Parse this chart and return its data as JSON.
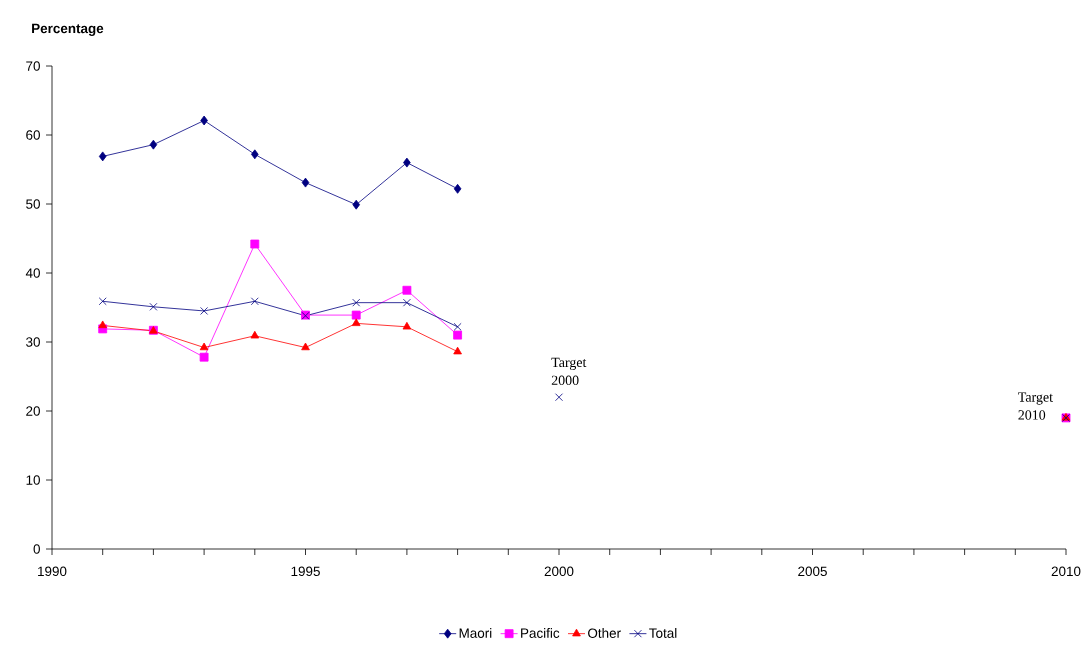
{
  "chart_data": {
    "type": "line",
    "ylabel": "Percentage",
    "xlim": [
      1990,
      2010
    ],
    "ylim": [
      0,
      70
    ],
    "xticks": [
      1990,
      {
        "value": 1991,
        "label": null
      },
      {
        "value": 1992,
        "label": null
      },
      {
        "value": 1993,
        "label": null
      },
      {
        "value": 1994,
        "label": null
      },
      1995,
      {
        "value": 1996,
        "label": null
      },
      {
        "value": 1997,
        "label": null
      },
      {
        "value": 1998,
        "label": null
      },
      {
        "value": 1999,
        "label": null
      },
      2000,
      {
        "value": 2001,
        "label": null
      },
      {
        "value": 2002,
        "label": null
      },
      {
        "value": 2003,
        "label": null
      },
      {
        "value": 2004,
        "label": null
      },
      2005,
      {
        "value": 2006,
        "label": null
      },
      {
        "value": 2007,
        "label": null
      },
      {
        "value": 2008,
        "label": null
      },
      {
        "value": 2009,
        "label": null
      },
      2010
    ],
    "yticks": [
      0,
      10,
      20,
      30,
      40,
      50,
      60,
      70
    ],
    "grid": false,
    "legend": "bottom",
    "series": [
      {
        "name": "Maori",
        "color": "#000080",
        "marker": "diamond",
        "x": [
          1991,
          1992,
          1993,
          1994,
          1995,
          1996,
          1997,
          1998
        ],
        "values": [
          56.9,
          58.6,
          62.1,
          57.2,
          53.1,
          49.9,
          56.0,
          52.2
        ]
      },
      {
        "name": "Pacific",
        "color": "#ff00ff",
        "marker": "square",
        "x": [
          1991,
          1992,
          1993,
          1994,
          1995,
          1996,
          1997,
          1998,
          1999,
          2010
        ],
        "values": [
          31.9,
          31.7,
          27.8,
          44.2,
          33.9,
          33.9,
          37.5,
          31.0,
          null,
          19
        ]
      },
      {
        "name": "Other",
        "color": "#ff0000",
        "marker": "triangle",
        "x": [
          1991,
          1992,
          1993,
          1994,
          1995,
          1996,
          1997,
          1998,
          1999,
          2010
        ],
        "values": [
          32.4,
          31.6,
          29.2,
          30.9,
          29.2,
          32.7,
          32.2,
          28.6,
          null,
          19
        ]
      },
      {
        "name": "Total",
        "color": "#000080",
        "marker": "cross",
        "x": [
          1991,
          1992,
          1993,
          1994,
          1995,
          1996,
          1997,
          1998,
          1999,
          2000,
          2001,
          2010
        ],
        "values": [
          35.9,
          35.1,
          34.5,
          35.9,
          33.8,
          35.7,
          35.7,
          32.2,
          null,
          22,
          null,
          19
        ]
      }
    ],
    "annotations": [
      {
        "text": "Target 2000",
        "x": 2000,
        "y": 22
      },
      {
        "text": "Target 2010",
        "x": 2010,
        "y": 19
      }
    ]
  }
}
